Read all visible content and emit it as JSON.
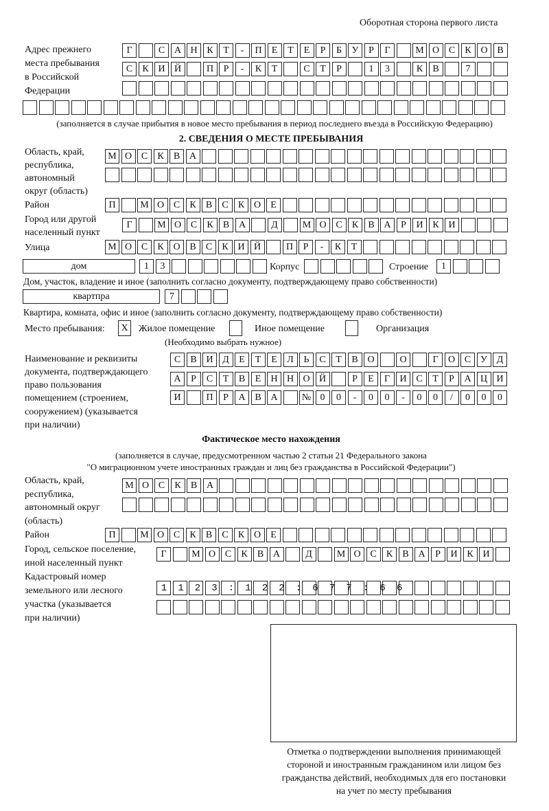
{
  "header": {
    "side_label": "Оборотная сторона первого листа"
  },
  "previous_address": {
    "label": [
      "Адрес прежнего",
      "места пребывания",
      "в Российской",
      "Федерации"
    ],
    "rows": [
      "Г САНКТ-ПЕТЕРБУРГ МОСКОВ",
      "СКИЙ ПР-КТ СТР 13 КВ 7  ",
      "",
      ""
    ],
    "note": "(заполняется в случае прибытия в новое место пребывания в период последнего въезда в Российскую Федерацию)"
  },
  "section2": {
    "title": "2. СВЕДЕНИЯ О МЕСТЕ ПРЕБЫВАНИЯ",
    "region_label": [
      "Область, край,",
      "республика,",
      "автономный",
      "округ (область)"
    ],
    "region_rows": [
      "МОСКВА",
      ""
    ],
    "district_label": "Район",
    "district": "П МОСКВСКОЕ",
    "city_label": [
      "Город или другой",
      "населенный пункт"
    ],
    "city": "Г МОСКВА Д МОСКВАРИКИ",
    "street_label": "Улица",
    "street": "МОСКОВСКИЙ ПР-КТ",
    "house_type": "дом",
    "house": "13",
    "korpus_label": "Корпус",
    "korpus": "",
    "building_label": "Строение",
    "building": "1",
    "house_note": "Дом, участок, владение и иное (заполнить согласно документу, подтверждающему право собственности)",
    "apt_type": "квартпра",
    "apt": "7",
    "apt_note": "Квартира, комната, офис и иное (заполнить согласно документу, подтверждающему право собственности)",
    "stay_label": "Место пребывания:",
    "stay_options": [
      {
        "label": "Жилое помещение",
        "mark": "X"
      },
      {
        "label": "Иное помещение",
        "mark": ""
      },
      {
        "label": "Организация",
        "mark": ""
      }
    ],
    "stay_note": "(Необходимо выбрать нужное)",
    "doc_label": [
      "Наименование и реквизиты",
      "документа, подтверждающего",
      "право пользования",
      "помещением (строением,",
      "сооружением) (указывается",
      "при наличии)"
    ],
    "doc_rows": [
      "СВИДЕТЕЛЬСТВО О ГОСУД",
      "АРСТВЕННОЙ РЕГИСТРАЦИ",
      "И ПРАВА №00-00-00/000"
    ]
  },
  "actual": {
    "title": "Фактическое место нахождения",
    "note": [
      "(заполняется в случае, предусмотренном частью 2 статьи 21 Федерального закона",
      "\"О миграционном учете иностранных граждан и лиц без гражданства в Российской Федерации\")"
    ],
    "region_label": [
      "Область, край,",
      "республика,",
      "автономный округ",
      "(область)"
    ],
    "region_rows": [
      "МОСКВА",
      ""
    ],
    "district_label": "Район",
    "district": "П МОСКВСКОЕ",
    "city_label": [
      "Город, сельское поселение,",
      "иной населенный пункт"
    ],
    "city": "Г МОСКВА Д МОСКВАРИКИ",
    "cadastral_label": [
      "Кадастровый номер",
      "земельного или лесного",
      "участка (указывается",
      "при наличии)"
    ],
    "cadastral_rows": [
      "1123:122:677:66",
      ""
    ]
  },
  "stamp": {
    "caption": [
      "Отметка о подтверждении выполнения принимающей",
      "стороной и иностранным гражданином или лицом без",
      "гражданства действий, необходимых для его постановки",
      "на учет по месту пребывания"
    ]
  }
}
